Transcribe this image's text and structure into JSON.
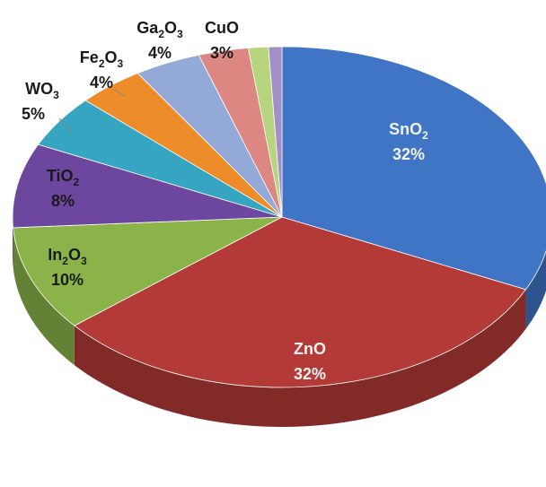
{
  "chart_data": {
    "type": "pie",
    "style": "3d",
    "title": "",
    "slices": [
      {
        "base": "SnO",
        "sub": "2",
        "label": "SnO2",
        "value": 32,
        "percent_text": "32%",
        "color": "#3f75c4",
        "label_style": "light"
      },
      {
        "base": "ZnO",
        "sub": "",
        "label": "ZnO",
        "value": 32,
        "percent_text": "32%",
        "color": "#b33a36",
        "label_style": "light"
      },
      {
        "base": "In",
        "sub": "2",
        "base2": "O",
        "sub2": "3",
        "label": "In2O3",
        "value": 10,
        "percent_text": "10%",
        "color": "#8ab44a",
        "label_style": "dark"
      },
      {
        "base": "TiO",
        "sub": "2",
        "label": "TiO2",
        "value": 8,
        "percent_text": "8%",
        "color": "#6d46a0",
        "label_style": "dark"
      },
      {
        "base": "WO",
        "sub": "3",
        "label": "WO3",
        "value": 5,
        "percent_text": "5%",
        "color": "#35a5c2",
        "label_style": "dark"
      },
      {
        "base": "Fe",
        "sub": "2",
        "base2": "O",
        "sub2": "3",
        "label": "Fe2O3",
        "value": 4,
        "percent_text": "4%",
        "color": "#ee8c2a",
        "label_style": "dark"
      },
      {
        "base": "Ga",
        "sub": "2",
        "base2": "O",
        "sub2": "3",
        "label": "Ga2O3",
        "value": 4,
        "percent_text": "4%",
        "color": "#93a9d8",
        "label_style": "dark"
      },
      {
        "base": "CuO",
        "sub": "",
        "label": "CuO",
        "value": 3,
        "percent_text": "3%",
        "color": "#dc8782",
        "label_style": "dark"
      },
      {
        "base": "",
        "sub": "",
        "label": "",
        "value": 1.2,
        "percent_text": "",
        "color": "#b7d57f",
        "label_style": "none"
      },
      {
        "base": "",
        "sub": "",
        "label": "",
        "value": 0.8,
        "percent_text": "",
        "color": "#a28fc6",
        "label_style": "none"
      }
    ]
  }
}
